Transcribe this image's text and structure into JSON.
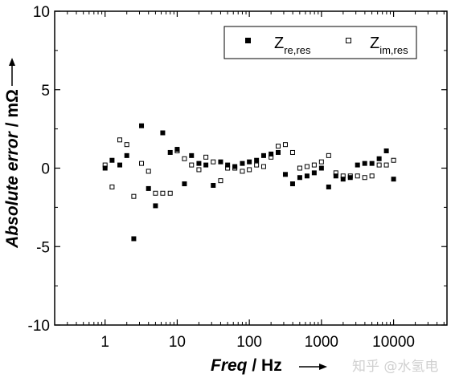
{
  "chart_data": {
    "type": "scatter",
    "title": "",
    "x_axis": {
      "label": "Freq",
      "unit": "Hz",
      "scale": "log",
      "range": [
        0.2,
        55000
      ],
      "ticks": [
        1,
        10,
        100,
        1000,
        10000
      ],
      "tick_labels": [
        "1",
        "10",
        "100",
        "1000",
        "10000"
      ]
    },
    "y_axis": {
      "label": "Absolute error",
      "unit": "mΩ",
      "scale": "linear",
      "range": [
        -10,
        10
      ],
      "ticks": [
        -10,
        -5,
        0,
        5,
        10
      ],
      "tick_labels": [
        "-10",
        "-5",
        "0",
        "5",
        "10"
      ]
    },
    "grid": false,
    "legend": {
      "position": "top-right"
    },
    "series": [
      {
        "name": "Z_re,res",
        "label_main": "Z",
        "label_sub": "re,res",
        "marker": "filled-square",
        "color": "#000000",
        "x": [
          1,
          1.25,
          1.6,
          2,
          2.5,
          3.2,
          4,
          5,
          6.3,
          8,
          10,
          12.6,
          15.8,
          20,
          25,
          31.6,
          40,
          50,
          63,
          80,
          100,
          126,
          158,
          200,
          251,
          316,
          398,
          501,
          631,
          794,
          1000,
          1259,
          1585,
          1995,
          2512,
          3162,
          3981,
          5012,
          6310,
          7943,
          10000
        ],
        "y": [
          0.0,
          0.5,
          0.2,
          0.8,
          -4.5,
          2.7,
          -1.3,
          -2.4,
          2.25,
          1.0,
          1.2,
          -1.0,
          0.8,
          0.3,
          0.2,
          -1.1,
          0.4,
          0.2,
          0.1,
          0.3,
          0.4,
          0.5,
          0.8,
          0.9,
          1.0,
          -0.4,
          -1.0,
          -0.6,
          -0.5,
          -0.3,
          0.0,
          -1.2,
          -0.5,
          -0.7,
          -0.6,
          0.2,
          0.3,
          0.3,
          0.6,
          1.1,
          -0.7
        ]
      },
      {
        "name": "Z_im,res",
        "label_main": "Z",
        "label_sub": "im,res",
        "marker": "open-square",
        "color": "#000000",
        "x": [
          1,
          1.25,
          1.6,
          2,
          2.5,
          3.2,
          4,
          5,
          6.3,
          8,
          10,
          12.6,
          15.8,
          20,
          25,
          31.6,
          40,
          50,
          63,
          80,
          100,
          126,
          158,
          200,
          251,
          316,
          398,
          501,
          631,
          794,
          1000,
          1259,
          1585,
          1995,
          2512,
          3162,
          3981,
          5012,
          6310,
          7943,
          10000
        ],
        "y": [
          0.2,
          -1.2,
          1.8,
          1.5,
          -1.8,
          0.3,
          -0.2,
          -1.6,
          -1.6,
          -1.6,
          1.1,
          0.6,
          0.2,
          -0.1,
          0.7,
          0.4,
          -0.8,
          0.0,
          0.0,
          -0.2,
          -0.1,
          0.2,
          0.1,
          0.7,
          1.4,
          1.5,
          1.0,
          0.0,
          0.1,
          0.2,
          0.4,
          0.8,
          -0.3,
          -0.5,
          -0.5,
          -0.5,
          -0.6,
          -0.5,
          0.2,
          0.2,
          0.5
        ]
      }
    ]
  },
  "watermark": "知乎 @水氢电"
}
